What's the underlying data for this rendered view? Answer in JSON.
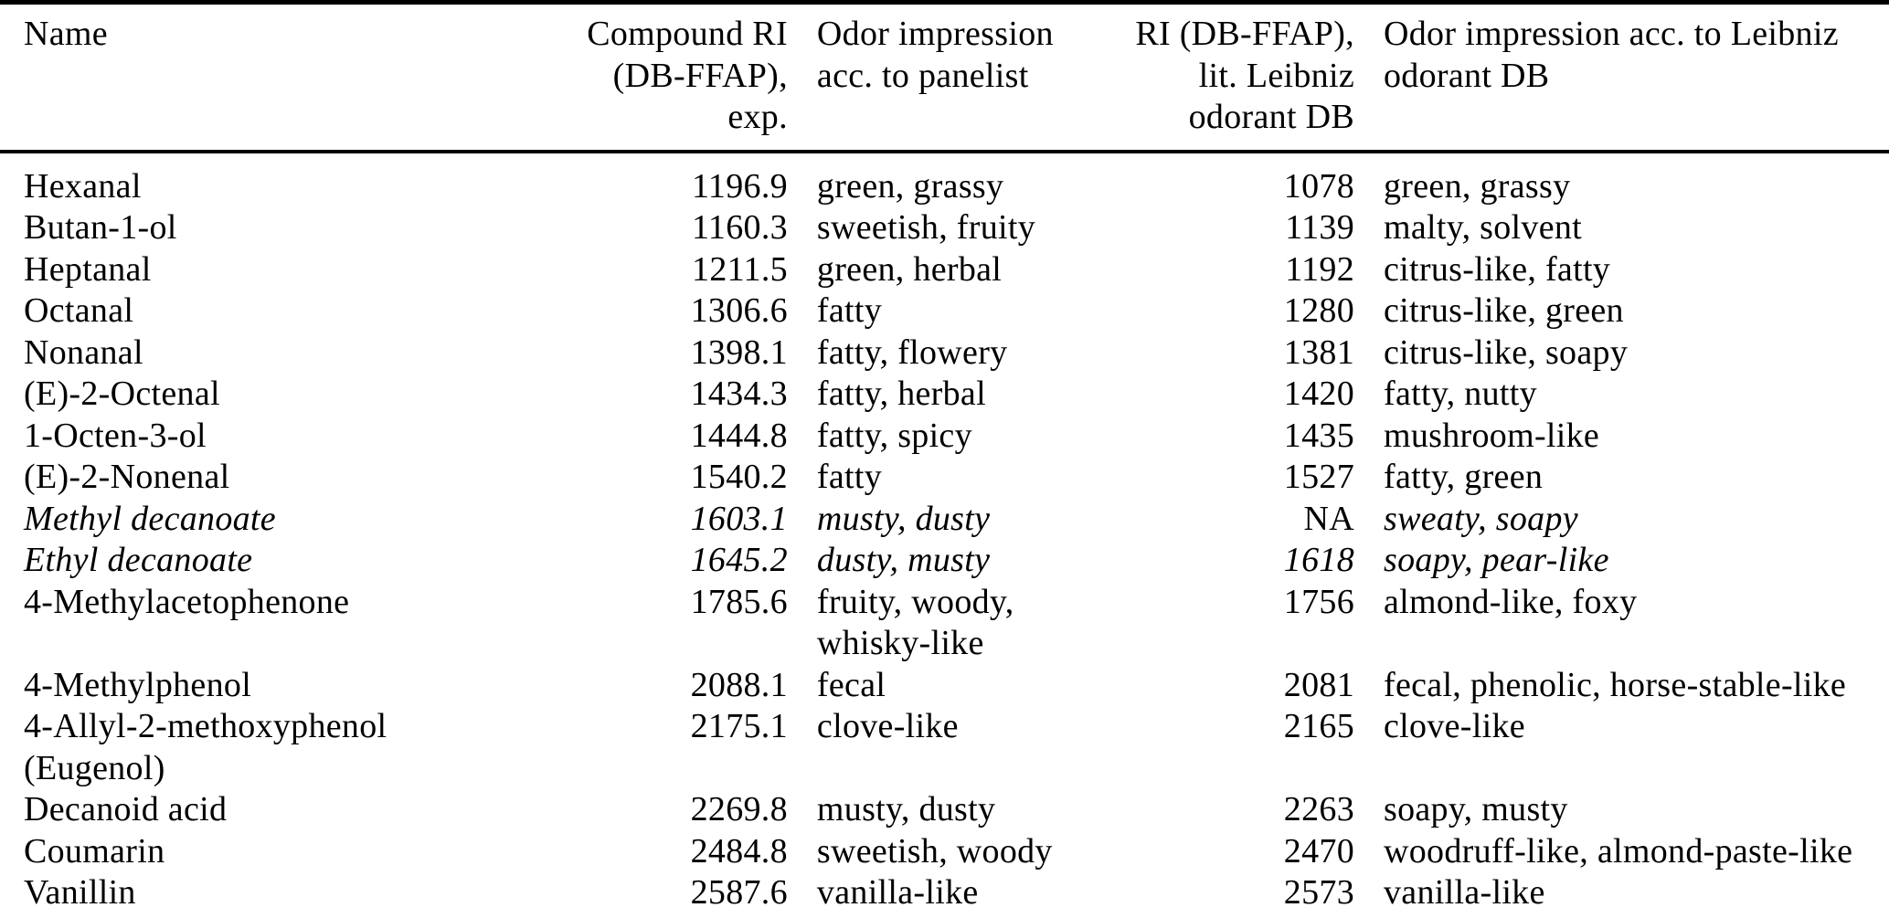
{
  "colors": {
    "background": "#ffffff",
    "text": "#000000",
    "rule": "#000000"
  },
  "table": {
    "headers": [
      {
        "id": "name",
        "label": "Name"
      },
      {
        "id": "ri_exp",
        "label": "Compound RI\n(DB-FFAP),\nexp."
      },
      {
        "id": "odor_panelist",
        "label": "Odor impression\nacc. to panelist"
      },
      {
        "id": "ri_lit",
        "label": "RI (DB-FFAP),\nlit. Leibniz\nodorant DB"
      },
      {
        "id": "odor_db",
        "label": "Odor impression acc. to Leibniz\nodorant DB"
      }
    ],
    "rows": [
      {
        "name": "Hexanal",
        "ri_exp": "1196.9",
        "odor_panelist": "green, grassy",
        "ri_lit": "1078",
        "odor_db": "green, grassy",
        "italic": false
      },
      {
        "name": "Butan-1-ol",
        "ri_exp": "1160.3",
        "odor_panelist": "sweetish, fruity",
        "ri_lit": "1139",
        "odor_db": "malty, solvent",
        "italic": false
      },
      {
        "name": "Heptanal",
        "ri_exp": "1211.5",
        "odor_panelist": "green, herbal",
        "ri_lit": "1192",
        "odor_db": "citrus-like, fatty",
        "italic": false
      },
      {
        "name": "Octanal",
        "ri_exp": "1306.6",
        "odor_panelist": "fatty",
        "ri_lit": "1280",
        "odor_db": "citrus-like, green",
        "italic": false
      },
      {
        "name": "Nonanal",
        "ri_exp": "1398.1",
        "odor_panelist": "fatty, flowery",
        "ri_lit": "1381",
        "odor_db": "citrus-like, soapy",
        "italic": false
      },
      {
        "name": "(E)-2-Octenal",
        "ri_exp": "1434.3",
        "odor_panelist": "fatty, herbal",
        "ri_lit": "1420",
        "odor_db": "fatty, nutty",
        "italic": false
      },
      {
        "name": "1-Octen-3-ol",
        "ri_exp": "1444.8",
        "odor_panelist": "fatty, spicy",
        "ri_lit": "1435",
        "odor_db": "mushroom-like",
        "italic": false
      },
      {
        "name": "(E)-2-Nonenal",
        "ri_exp": "1540.2",
        "odor_panelist": "fatty",
        "ri_lit": "1527",
        "odor_db": "fatty, green",
        "italic": false
      },
      {
        "name": "Methyl decanoate",
        "ri_exp": "1603.1",
        "odor_panelist": "musty, dusty",
        "ri_lit": "NA",
        "odor_db": "sweaty, soapy",
        "italic": true
      },
      {
        "name": "Ethyl decanoate",
        "ri_exp": "1645.2",
        "odor_panelist": "dusty, musty",
        "ri_lit": "1618",
        "odor_db": "soapy, pear-like",
        "italic": true
      },
      {
        "name": "4-Methylacetophenone",
        "ri_exp": "1785.6",
        "odor_panelist": "fruity, woody,\nwhisky-like",
        "ri_lit": "1756",
        "odor_db": "almond-like, foxy",
        "italic": false
      },
      {
        "name": "4-Methylphenol",
        "ri_exp": "2088.1",
        "odor_panelist": "fecal",
        "ri_lit": "2081",
        "odor_db": "fecal, phenolic, horse-stable-like",
        "italic": false
      },
      {
        "name": "4-Allyl-2-methoxyphenol\n(Eugenol)",
        "ri_exp": "2175.1",
        "odor_panelist": "clove-like",
        "ri_lit": "2165",
        "odor_db": "clove-like",
        "italic": false
      },
      {
        "name": "Decanoid acid",
        "ri_exp": "2269.8",
        "odor_panelist": "musty, dusty",
        "ri_lit": "2263",
        "odor_db": "soapy, musty",
        "italic": false
      },
      {
        "name": "Coumarin",
        "ri_exp": "2484.8",
        "odor_panelist": "sweetish, woody",
        "ri_lit": "2470",
        "odor_db": "woodruff-like, almond-paste-like",
        "italic": false
      },
      {
        "name": "Vanillin",
        "ri_exp": "2587.6",
        "odor_panelist": "vanilla-like",
        "ri_lit": "2573",
        "odor_db": "vanilla-like",
        "italic": false
      }
    ]
  }
}
